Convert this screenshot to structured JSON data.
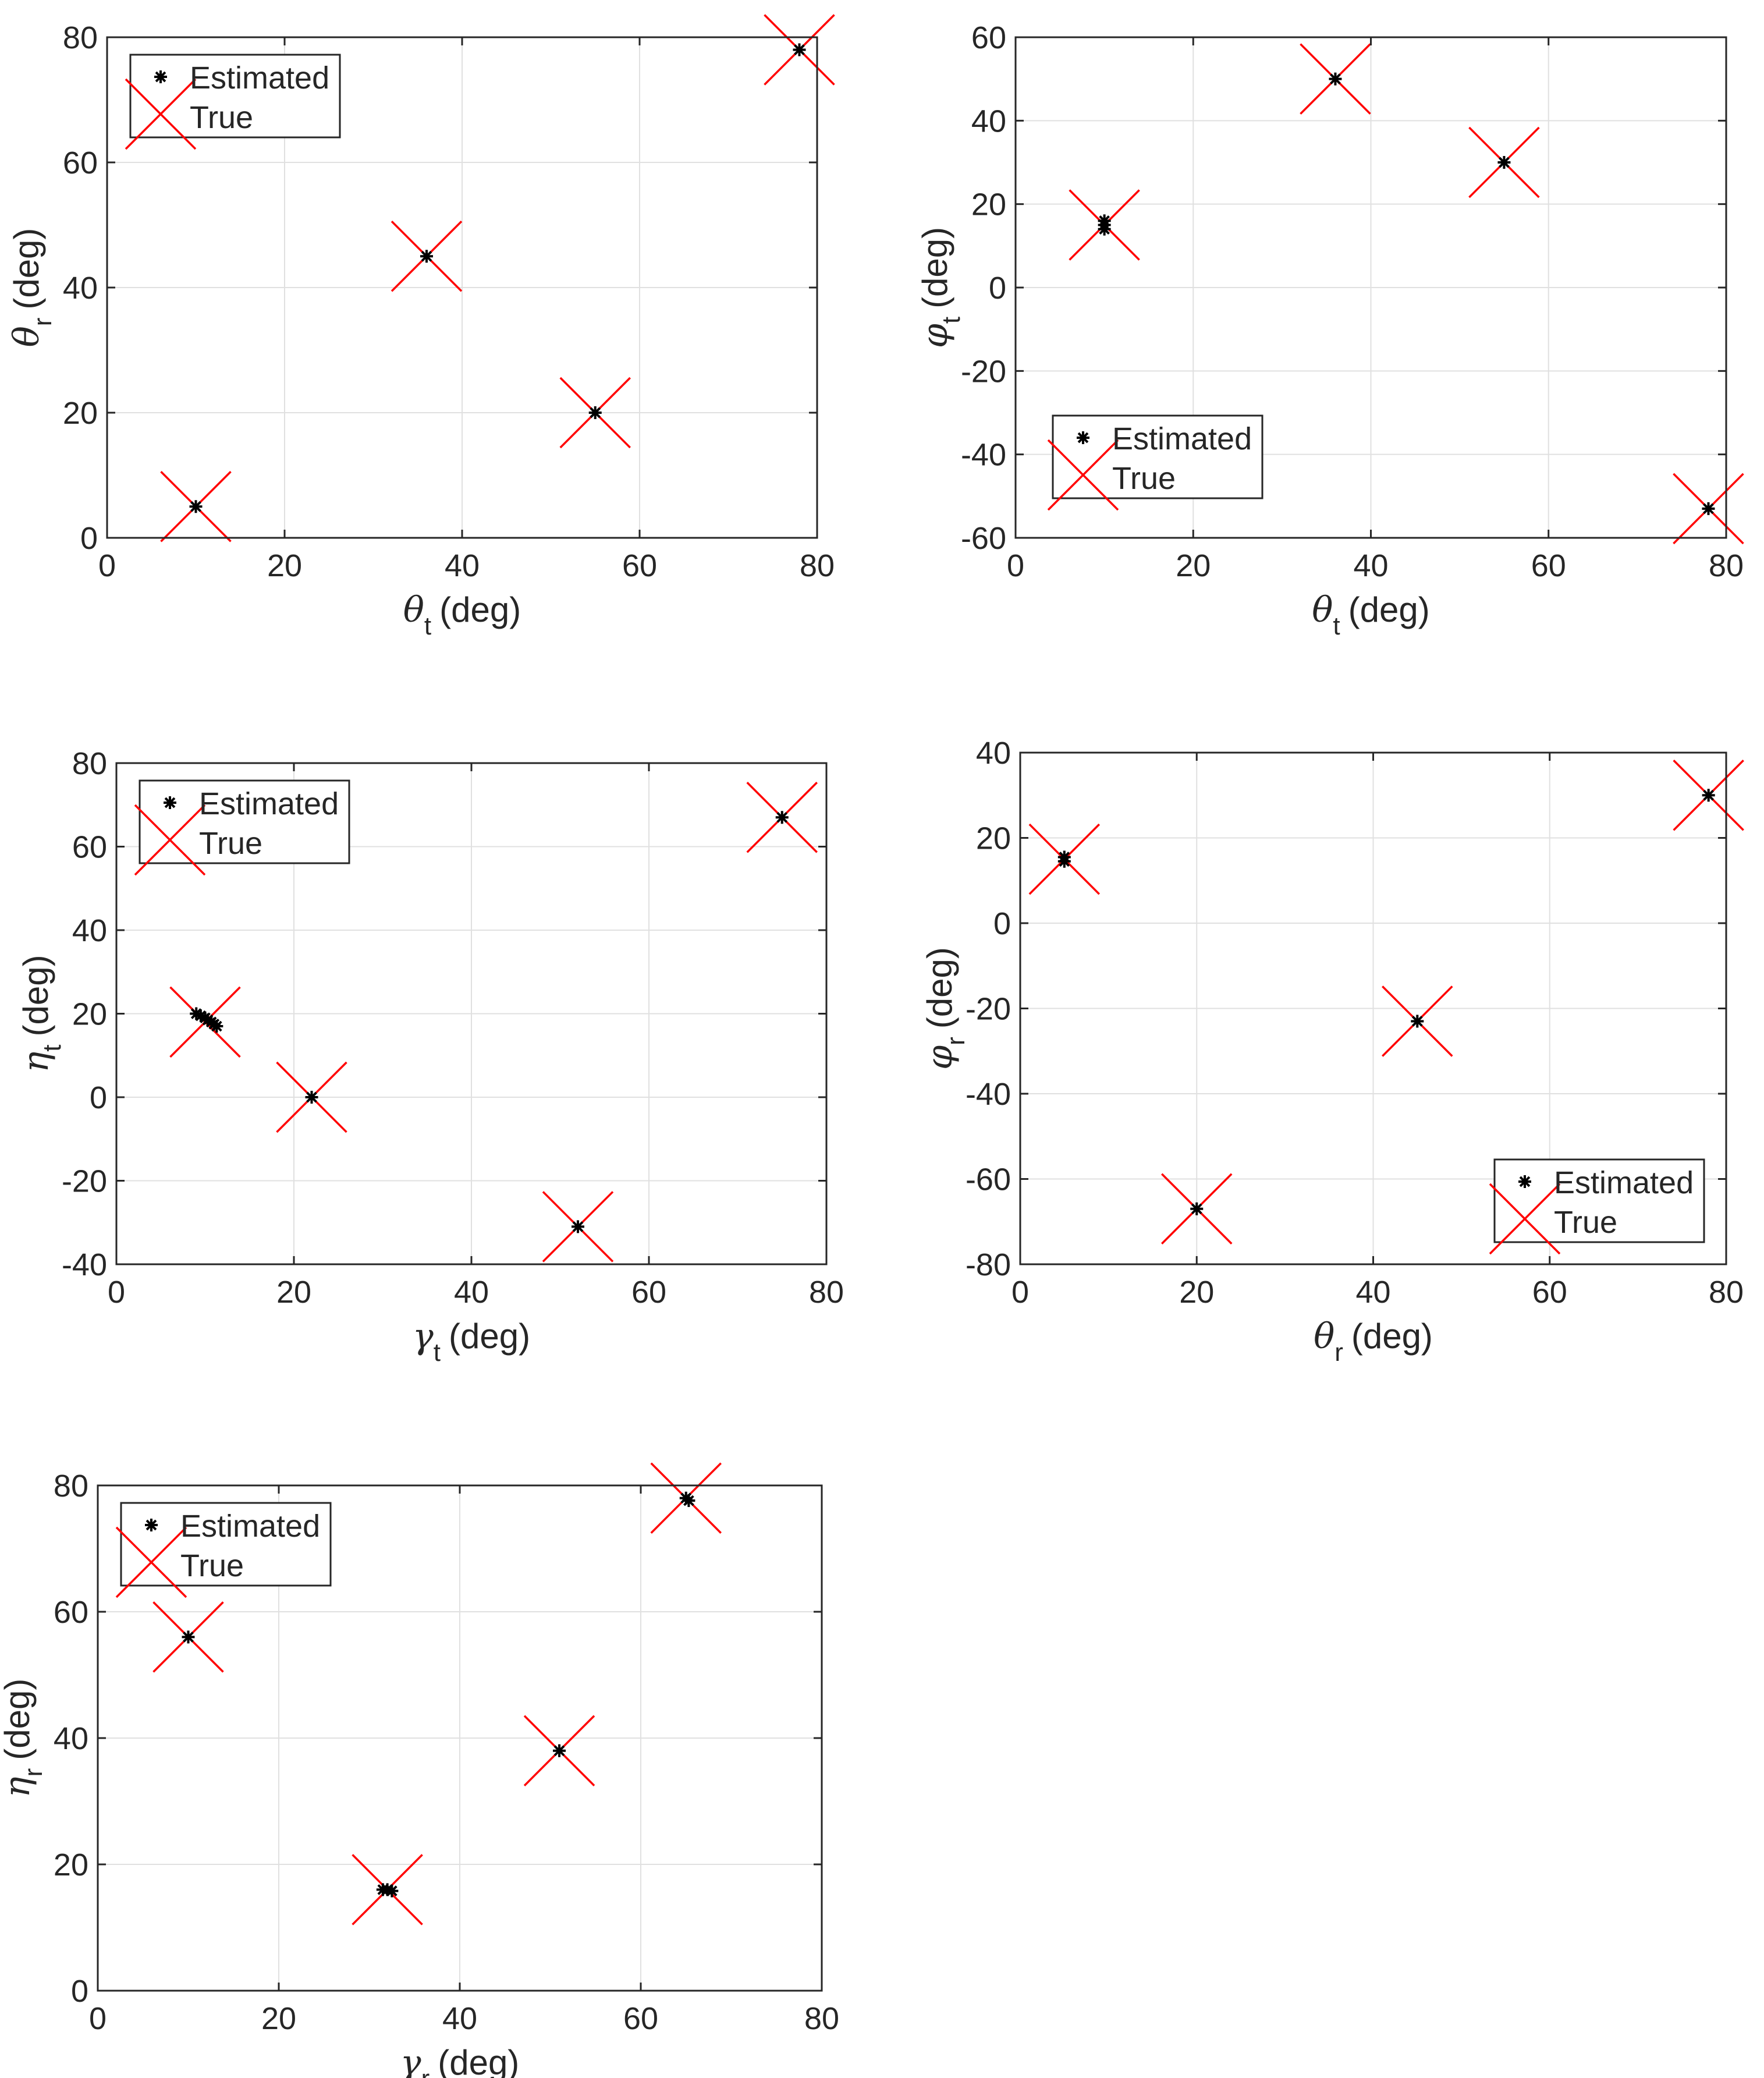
{
  "legend": {
    "estimated": "Estimated",
    "true": "True"
  },
  "axis_unit": "(deg)",
  "colors": {
    "true_marker": "#ff0000",
    "estimated_marker": "#000000",
    "grid": "#e0e0e0",
    "axes": "#262626"
  },
  "chart_data": [
    {
      "type": "scatter",
      "xlabel": {
        "symbol": "θ",
        "sub": "t",
        "unit": "(deg)"
      },
      "ylabel": {
        "symbol": "θ",
        "sub": "r",
        "unit": "(deg)"
      },
      "xlim": [
        0,
        80
      ],
      "ylim": [
        0,
        80
      ],
      "xticks": [
        0,
        20,
        40,
        60,
        80
      ],
      "yticks": [
        0,
        20,
        40,
        60,
        80
      ],
      "grid": true,
      "legend_location": "top-left",
      "series": [
        {
          "name": "Estimated",
          "marker": "asterisk",
          "points": [
            [
              10,
              5
            ],
            [
              36,
              45
            ],
            [
              55,
              20
            ],
            [
              78,
              78
            ]
          ]
        },
        {
          "name": "True",
          "marker": "x",
          "points": [
            [
              10,
              5
            ],
            [
              36,
              45
            ],
            [
              55,
              20
            ],
            [
              78,
              78
            ]
          ]
        }
      ]
    },
    {
      "type": "scatter",
      "xlabel": {
        "symbol": "θ",
        "sub": "t",
        "unit": "(deg)"
      },
      "ylabel": {
        "symbol": "φ",
        "sub": "t",
        "unit": "(deg)"
      },
      "xlim": [
        0,
        80
      ],
      "ylim": [
        -60,
        60
      ],
      "xticks": [
        0,
        20,
        40,
        60,
        80
      ],
      "yticks": [
        -60,
        -40,
        -20,
        0,
        20,
        40,
        60
      ],
      "grid": true,
      "legend_location": "bottom-left",
      "series": [
        {
          "name": "Estimated",
          "marker": "asterisk",
          "points": [
            [
              10,
              14
            ],
            [
              10,
              15
            ],
            [
              10,
              16
            ],
            [
              36,
              50
            ],
            [
              55,
              30
            ],
            [
              78,
              -53
            ]
          ]
        },
        {
          "name": "True",
          "marker": "x",
          "points": [
            [
              10,
              15
            ],
            [
              36,
              50
            ],
            [
              55,
              30
            ],
            [
              78,
              -53
            ]
          ]
        }
      ]
    },
    {
      "type": "scatter",
      "xlabel": {
        "symbol": "γ",
        "sub": "t",
        "unit": "(deg)"
      },
      "ylabel": {
        "symbol": "η",
        "sub": "t",
        "unit": "(deg)"
      },
      "xlim": [
        0,
        80
      ],
      "ylim": [
        -40,
        80
      ],
      "xticks": [
        0,
        20,
        40,
        60,
        80
      ],
      "yticks": [
        -40,
        -20,
        0,
        20,
        40,
        60,
        80
      ],
      "grid": true,
      "legend_location": "top-left",
      "series": [
        {
          "name": "Estimated",
          "marker": "asterisk",
          "points": [
            [
              9,
              20
            ],
            [
              9.5,
              19.5
            ],
            [
              10,
              19
            ],
            [
              10.3,
              18.5
            ],
            [
              10.7,
              18
            ],
            [
              11,
              17.5
            ],
            [
              11.3,
              17
            ],
            [
              22,
              0
            ],
            [
              52,
              -31
            ],
            [
              75,
              67
            ]
          ]
        },
        {
          "name": "True",
          "marker": "x",
          "points": [
            [
              10,
              18
            ],
            [
              22,
              0
            ],
            [
              52,
              -31
            ],
            [
              75,
              67
            ]
          ]
        }
      ]
    },
    {
      "type": "scatter",
      "xlabel": {
        "symbol": "θ",
        "sub": "r",
        "unit": "(deg)"
      },
      "ylabel": {
        "symbol": "φ",
        "sub": "r",
        "unit": "(deg)"
      },
      "xlim": [
        0,
        80
      ],
      "ylim": [
        -80,
        40
      ],
      "xticks": [
        0,
        20,
        40,
        60,
        80
      ],
      "yticks": [
        -80,
        -60,
        -40,
        -20,
        0,
        20,
        40
      ],
      "grid": true,
      "legend_location": "bottom-right",
      "series": [
        {
          "name": "Estimated",
          "marker": "asterisk",
          "points": [
            [
              5,
              14.5
            ],
            [
              5,
              15.5
            ],
            [
              20,
              -67
            ],
            [
              45,
              -23
            ],
            [
              78,
              30
            ]
          ]
        },
        {
          "name": "True",
          "marker": "x",
          "points": [
            [
              5,
              15
            ],
            [
              20,
              -67
            ],
            [
              45,
              -23
            ],
            [
              78,
              30
            ]
          ]
        }
      ]
    },
    {
      "type": "scatter",
      "xlabel": {
        "symbol": "γ",
        "sub": "r",
        "unit": "(deg)"
      },
      "ylabel": {
        "symbol": "η",
        "sub": "r",
        "unit": "(deg)"
      },
      "xlim": [
        0,
        80
      ],
      "ylim": [
        0,
        80
      ],
      "xticks": [
        0,
        20,
        40,
        60,
        80
      ],
      "yticks": [
        0,
        20,
        40,
        60,
        80
      ],
      "grid": true,
      "legend_location": "top-left",
      "series": [
        {
          "name": "Estimated",
          "marker": "asterisk",
          "points": [
            [
              10,
              56
            ],
            [
              31.5,
              16
            ],
            [
              32,
              16
            ],
            [
              32.5,
              15.8
            ],
            [
              51,
              38
            ],
            [
              65,
              78
            ],
            [
              65.3,
              77.6
            ]
          ]
        },
        {
          "name": "True",
          "marker": "x",
          "points": [
            [
              10,
              56
            ],
            [
              32,
              16
            ],
            [
              51,
              38
            ],
            [
              65,
              78
            ]
          ]
        }
      ]
    }
  ]
}
